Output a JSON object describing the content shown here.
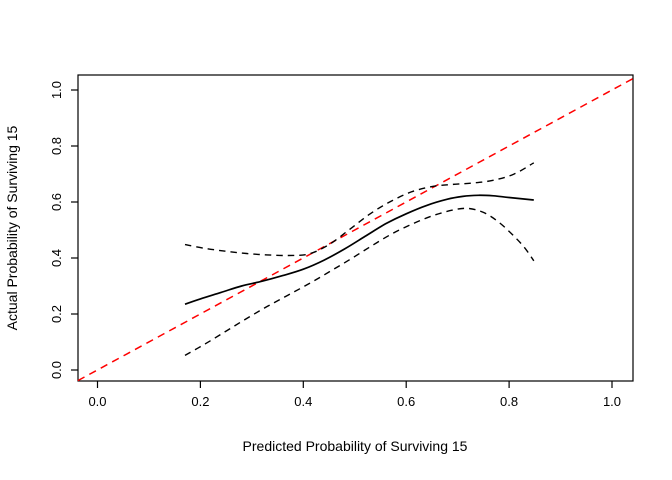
{
  "figure": {
    "background": "#ffffff",
    "border_color": "#000000"
  },
  "chart_data": {
    "type": "line",
    "title": "",
    "xlabel": "Predicted Probability of Surviving 15",
    "ylabel": "Actual Probability of Surviving 15",
    "xlim": [
      -0.04,
      1.04
    ],
    "ylim": [
      -0.04,
      1.05
    ],
    "grid": false,
    "legend": "none",
    "x_ticks": {
      "values": [
        0.0,
        0.2,
        0.4,
        0.6,
        0.8,
        1.0
      ],
      "labels": [
        "0.0",
        "0.2",
        "0.4",
        "0.6",
        "0.8",
        "1.0"
      ]
    },
    "y_ticks": {
      "values": [
        0.0,
        0.2,
        0.4,
        0.6,
        0.8,
        1.0
      ],
      "labels": [
        "0.0",
        "0.2",
        "0.4",
        "0.6",
        "0.8",
        "1.0"
      ]
    },
    "series": [
      {
        "name": "ideal-line",
        "style": "dashed",
        "color": "#ff0000",
        "width": 1.5,
        "dash": "7.5,5.5",
        "smooth": false,
        "points": [
          [
            -0.038,
            -0.038
          ],
          [
            1.04,
            1.04
          ]
        ]
      },
      {
        "name": "calibration-curve",
        "style": "solid",
        "color": "#000000",
        "width": 1.7,
        "dash": "",
        "smooth": true,
        "points": [
          [
            0.17,
            0.235
          ],
          [
            0.2,
            0.254
          ],
          [
            0.24,
            0.277
          ],
          [
            0.28,
            0.3
          ],
          [
            0.32,
            0.317
          ],
          [
            0.36,
            0.337
          ],
          [
            0.4,
            0.36
          ],
          [
            0.44,
            0.392
          ],
          [
            0.48,
            0.432
          ],
          [
            0.52,
            0.477
          ],
          [
            0.56,
            0.522
          ],
          [
            0.6,
            0.558
          ],
          [
            0.64,
            0.588
          ],
          [
            0.68,
            0.61
          ],
          [
            0.71,
            0.62
          ],
          [
            0.74,
            0.624
          ],
          [
            0.77,
            0.622
          ],
          [
            0.8,
            0.616
          ],
          [
            0.848,
            0.607
          ]
        ]
      },
      {
        "name": "upper-confidence-band",
        "style": "dashed",
        "color": "#000000",
        "width": 1.4,
        "dash": "6.5,5",
        "smooth": true,
        "points": [
          [
            0.17,
            0.448
          ],
          [
            0.21,
            0.434
          ],
          [
            0.25,
            0.424
          ],
          [
            0.29,
            0.416
          ],
          [
            0.33,
            0.411
          ],
          [
            0.37,
            0.409
          ],
          [
            0.41,
            0.414
          ],
          [
            0.45,
            0.448
          ],
          [
            0.49,
            0.502
          ],
          [
            0.53,
            0.558
          ],
          [
            0.57,
            0.602
          ],
          [
            0.61,
            0.636
          ],
          [
            0.65,
            0.655
          ],
          [
            0.69,
            0.663
          ],
          [
            0.73,
            0.668
          ],
          [
            0.77,
            0.678
          ],
          [
            0.81,
            0.7
          ],
          [
            0.848,
            0.74
          ]
        ]
      },
      {
        "name": "lower-confidence-band",
        "style": "dashed",
        "color": "#000000",
        "width": 1.4,
        "dash": "6.5,5",
        "smooth": true,
        "points": [
          [
            0.17,
            0.052
          ],
          [
            0.21,
            0.094
          ],
          [
            0.25,
            0.139
          ],
          [
            0.29,
            0.184
          ],
          [
            0.33,
            0.227
          ],
          [
            0.37,
            0.267
          ],
          [
            0.41,
            0.307
          ],
          [
            0.45,
            0.35
          ],
          [
            0.49,
            0.394
          ],
          [
            0.53,
            0.44
          ],
          [
            0.57,
            0.484
          ],
          [
            0.61,
            0.52
          ],
          [
            0.65,
            0.55
          ],
          [
            0.69,
            0.571
          ],
          [
            0.72,
            0.577
          ],
          [
            0.75,
            0.563
          ],
          [
            0.78,
            0.528
          ],
          [
            0.81,
            0.477
          ],
          [
            0.83,
            0.437
          ],
          [
            0.848,
            0.39
          ]
        ]
      }
    ]
  }
}
